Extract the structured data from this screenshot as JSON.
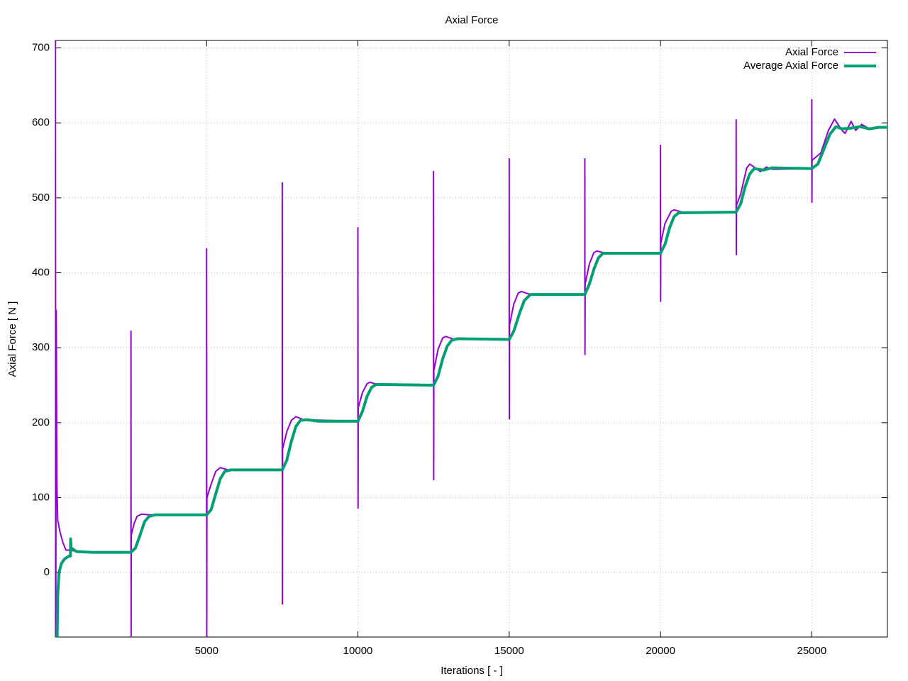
{
  "chart_data": {
    "type": "line",
    "title": "Axial Force",
    "xlabel": "Iterations [ - ]",
    "ylabel": "Axial Force [ N ]",
    "xlim": [
      0,
      27500
    ],
    "ylim": [
      -86,
      710
    ],
    "xticks": [
      5000,
      10000,
      15000,
      20000,
      25000
    ],
    "yticks": [
      0,
      100,
      200,
      300,
      400,
      500,
      600,
      700
    ],
    "grid": true,
    "legend": "top-right",
    "series": [
      {
        "name": "Axial Force",
        "color": "#9400d3",
        "x": [
          0,
          15,
          30,
          50,
          80,
          150,
          250,
          350,
          450,
          600,
          1000,
          2499,
          2500,
          2505,
          2510,
          2600,
          2700,
          2850,
          3100,
          4999,
          5000,
          5005,
          5010,
          5150,
          5300,
          5450,
          5700,
          7499,
          7500,
          7505,
          7510,
          7650,
          7800,
          7950,
          8200,
          9999,
          10000,
          10005,
          10010,
          10150,
          10300,
          10400,
          10700,
          12499,
          12500,
          12505,
          12510,
          12650,
          12800,
          12900,
          13200,
          14999,
          15000,
          15005,
          15010,
          15150,
          15300,
          15400,
          15700,
          17499,
          17500,
          17505,
          17510,
          17650,
          17800,
          17900,
          18200,
          19999,
          20000,
          20005,
          20010,
          20150,
          20350,
          20450,
          20800,
          22499,
          22500,
          22505,
          22510,
          22650,
          22850,
          22950,
          23200,
          23300,
          23500,
          23700,
          24999,
          25000,
          25005,
          25010,
          25300,
          25550,
          25750,
          26000,
          26100,
          26300,
          26450,
          26650,
          26900,
          27500
        ],
        "values": [
          710,
          -86,
          350,
          120,
          70,
          55,
          40,
          30,
          30,
          29,
          27,
          27,
          322,
          -86,
          50,
          65,
          75,
          78,
          77,
          77,
          432,
          -86,
          100,
          118,
          135,
          140,
          137,
          137,
          520,
          -42,
          165,
          188,
          203,
          208,
          204,
          202,
          460,
          86,
          220,
          240,
          252,
          254,
          250,
          250,
          535,
          124,
          270,
          298,
          313,
          315,
          311,
          311,
          552,
          205,
          330,
          358,
          373,
          375,
          371,
          371,
          552,
          291,
          385,
          412,
          427,
          429,
          426,
          426,
          570,
          362,
          440,
          466,
          482,
          484,
          480,
          481,
          604,
          424,
          490,
          505,
          540,
          545,
          538,
          535,
          541,
          538,
          539,
          631,
          494,
          550,
          560,
          590,
          605,
          590,
          586,
          602,
          590,
          598,
          592,
          594
        ]
      },
      {
        "name": "Average Axial Force",
        "color": "#009e73",
        "x": [
          0,
          60,
          80,
          120,
          200,
          300,
          450,
          500,
          505,
          520,
          700,
          1200,
          2500,
          2650,
          2800,
          2950,
          3100,
          3300,
          5000,
          5150,
          5300,
          5450,
          5600,
          5800,
          7500,
          7650,
          7800,
          7950,
          8100,
          8300,
          8700,
          10000,
          10150,
          10300,
          10450,
          10600,
          10800,
          12500,
          12650,
          12800,
          12950,
          13100,
          13300,
          15000,
          15150,
          15350,
          15500,
          15700,
          17500,
          17650,
          17800,
          17950,
          18100,
          20000,
          20150,
          20300,
          20450,
          20600,
          22500,
          22650,
          22800,
          22950,
          23100,
          23400,
          23700,
          25000,
          25200,
          25400,
          25600,
          25800,
          26000,
          26300,
          26600,
          26900,
          27200,
          27500
        ],
        "values": [
          -86,
          -86,
          -30,
          0,
          12,
          18,
          22,
          22,
          45,
          33,
          28,
          27,
          27,
          33,
          50,
          68,
          75,
          77,
          77,
          84,
          105,
          125,
          135,
          137,
          137,
          150,
          175,
          195,
          203,
          204,
          202,
          202,
          215,
          235,
          247,
          251,
          251,
          250,
          262,
          285,
          302,
          310,
          312,
          311,
          322,
          347,
          363,
          371,
          371,
          385,
          405,
          420,
          426,
          426,
          438,
          460,
          475,
          480,
          481,
          492,
          515,
          532,
          539,
          537,
          540,
          539,
          545,
          565,
          585,
          595,
          592,
          593,
          595,
          592,
          594,
          594
        ]
      }
    ]
  }
}
